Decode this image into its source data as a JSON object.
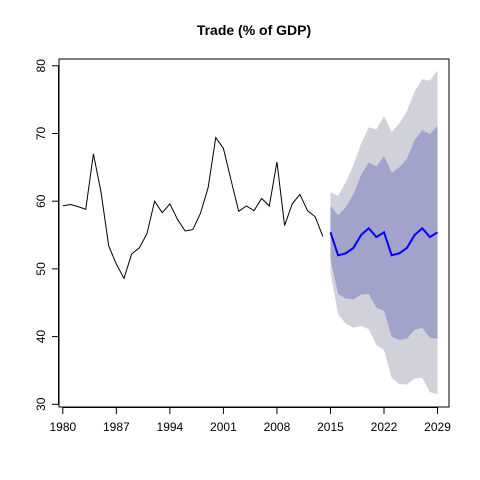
{
  "chart_data": {
    "type": "line",
    "title": "Trade (% of GDP)",
    "xlabel": "",
    "ylabel": "",
    "xlim": [
      1979.5,
      2030.5
    ],
    "ylim": [
      29.6,
      81.0
    ],
    "x_ticks": [
      1980,
      1987,
      1994,
      2001,
      2008,
      2015,
      2022,
      2029
    ],
    "y_ticks": [
      30,
      40,
      50,
      60,
      70,
      80
    ],
    "grid": false,
    "legend": "none",
    "colors": {
      "history": "#000000",
      "forecast": "#0000ff",
      "band_80": "#a1a3cb",
      "band_95": "#d1d1d9"
    },
    "series": [
      {
        "kind": "history",
        "x": [
          1980,
          1981,
          1982,
          1983,
          1984,
          1985,
          1986,
          1987,
          1988,
          1989,
          1990,
          1991,
          1992,
          1993,
          1994,
          1995,
          1996,
          1997,
          1998,
          1999,
          2000,
          2001,
          2002,
          2003,
          2004,
          2005,
          2006,
          2007,
          2008,
          2009,
          2010,
          2011,
          2012,
          2013,
          2014
        ],
        "values": [
          59.3,
          59.5,
          59.2,
          58.8,
          67.0,
          61.3,
          53.4,
          50.7,
          48.6,
          52.2,
          53.1,
          55.2,
          60.0,
          58.3,
          59.6,
          57.3,
          55.6,
          55.8,
          58.2,
          62.0,
          69.4,
          67.8,
          63.1,
          58.5,
          59.3,
          58.6,
          60.4,
          59.3,
          65.8,
          56.4,
          59.6,
          61.0,
          58.6,
          57.7,
          54.8
        ]
      },
      {
        "kind": "forecast",
        "x": [
          2015,
          2016,
          2017,
          2018,
          2019,
          2020,
          2021,
          2022,
          2023,
          2024,
          2025,
          2026,
          2027,
          2028,
          2029
        ],
        "values": [
          55.4,
          52.0,
          52.3,
          53.1,
          55.0,
          56.0,
          54.7,
          55.4,
          52.0,
          52.3,
          53.1,
          55.0,
          56.0,
          54.7,
          55.4
        ],
        "lo80": [
          51.5,
          46.3,
          45.6,
          45.5,
          46.2,
          46.3,
          44.3,
          43.8,
          40.0,
          39.5,
          39.7,
          41.0,
          41.3,
          39.8,
          39.7
        ],
        "hi80": [
          59.3,
          57.9,
          59.1,
          61.0,
          63.9,
          65.7,
          65.1,
          66.7,
          64.2,
          65.0,
          66.3,
          69.0,
          70.5,
          69.9,
          71.1
        ],
        "lo95": [
          49.5,
          43.3,
          41.9,
          41.3,
          41.6,
          41.1,
          38.8,
          38.0,
          33.9,
          33.0,
          32.9,
          33.8,
          33.9,
          31.8,
          31.5
        ],
        "hi95": [
          61.3,
          60.8,
          62.8,
          65.3,
          68.5,
          70.9,
          70.6,
          72.6,
          70.2,
          71.5,
          73.3,
          76.2,
          78.0,
          77.8,
          79.3
        ]
      }
    ]
  }
}
